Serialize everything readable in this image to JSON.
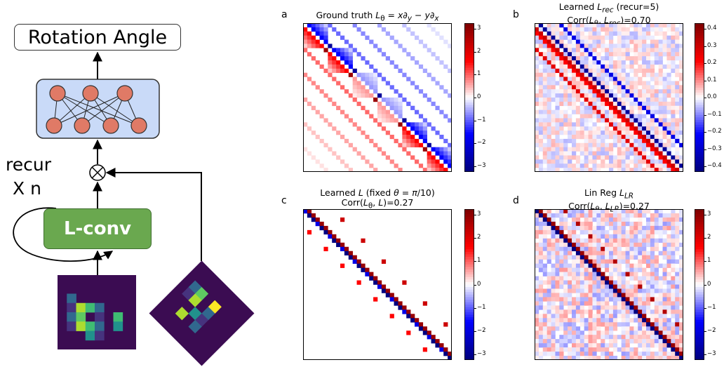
{
  "diagram": {
    "output_label": "Rotation Angle",
    "module_label": "L-conv",
    "recur_line1": "recur",
    "recur_line2": "X n",
    "combine_symbol": "⊗",
    "input_image_a": [
      "00000000",
      "00000000",
      "01000000",
      "01111000",
      "01101010",
      "01111010",
      "00011000",
      "00000000"
    ],
    "input_image_b": [
      "00000000",
      "00000000",
      "01102000",
      "01101000",
      "00011000",
      "00101000",
      "00000000",
      "00000000"
    ]
  },
  "panels": [
    {
      "letter": "a",
      "title_html": "Ground truth <i>L</i><sub>θ</sub> = <i>x</i>∂<sub><i>y</i></sub> − <i>y</i>∂<sub><i>x</i></sub>",
      "subtitle_html": "",
      "cb_ticks": [
        "3",
        "2",
        "1",
        "0",
        "−1",
        "−2",
        "−3"
      ]
    },
    {
      "letter": "b",
      "title_html": "Learned <i>L</i><sub><i>rec</i></sub> (recur=5)",
      "subtitle_html": "Corr(<i>L</i><sub>θ</sub>, <i>L</i><sub><i>rec</i></sub>)=0.70",
      "cb_ticks": [
        "0.4",
        "0.3",
        "0.2",
        "0.1",
        "0.0",
        "−0.1",
        "−0.2",
        "−0.3",
        "−0.4"
      ]
    },
    {
      "letter": "c",
      "title_html": "Learned <i>L</i> (fixed <i>θ</i> = <i>π</i>/10)",
      "subtitle_html": "Corr(<i>L</i><sub>θ</sub>, <i>L</i>)=0.27",
      "cb_ticks": [
        "3",
        "2",
        "1",
        "0",
        "−1",
        "−2",
        "−3"
      ]
    },
    {
      "letter": "d",
      "title_html": "Lin Reg <i>L</i><sub><i>LR</i></sub>",
      "subtitle_html": "Corr(<i>L</i><sub>θ</sub>, <i>L</i><sub><i>LR</i></sub>)=0.27",
      "cb_ticks": [
        "3",
        "2",
        "1",
        "0",
        "−1",
        "−2",
        "−3"
      ]
    }
  ]
}
